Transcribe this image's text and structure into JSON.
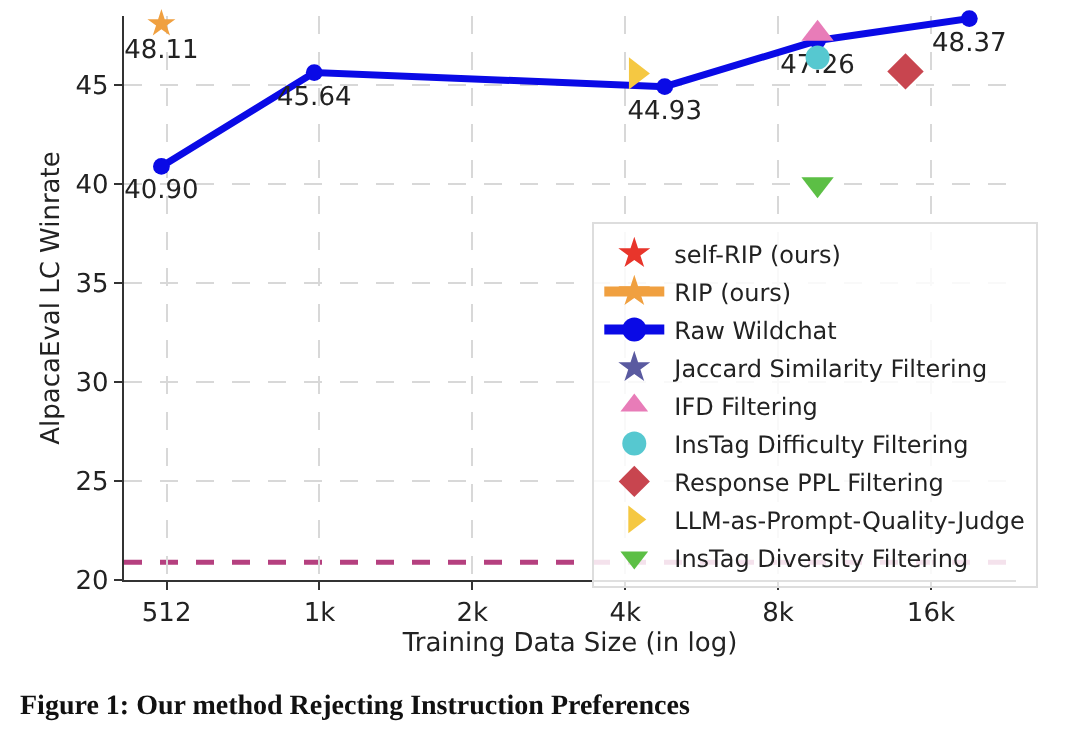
{
  "chart_data": {
    "type": "scatter",
    "xlabel": "Training Data Size (in log)",
    "ylabel": "AlpacaEval LC Winrate",
    "log": "x",
    "xlim": [
      422,
      24100
    ],
    "ylim": [
      20,
      48.5
    ],
    "xticks": [
      {
        "value": 512,
        "label": "512"
      },
      {
        "value": 1024,
        "label": "1k"
      },
      {
        "value": 2048,
        "label": "2k"
      },
      {
        "value": 4096,
        "label": "4k"
      },
      {
        "value": 8192,
        "label": "8k"
      },
      {
        "value": 16384,
        "label": "16k"
      }
    ],
    "yticks": [
      20,
      25,
      30,
      35,
      40,
      45
    ],
    "grid": true,
    "legend": "bottom right",
    "ref_lines": [
      {
        "axis": "y",
        "value": 20.9,
        "color": "#b5407f",
        "line_style": "dashed"
      }
    ],
    "annotations": [
      "Figure 1: Our method Rejecting Instruction Preferences"
    ],
    "series": [
      {
        "name": "self-RIP (ours)",
        "marker": "star",
        "color": "#e8352b"
      },
      {
        "name": "RIP (ours)",
        "type": "line",
        "marker": "star",
        "color": "#f0a040",
        "x": [
          500
        ],
        "values": [
          48.11
        ],
        "value_labels": [
          "48.11"
        ]
      },
      {
        "name": "Raw Wildchat",
        "type": "line",
        "marker": "circle",
        "color": "#0a0ae6",
        "x": [
          500,
          1000,
          4900,
          9800,
          19500
        ],
        "values": [
          40.9,
          45.64,
          44.93,
          47.26,
          48.37
        ],
        "value_labels": [
          "40.90",
          "45.64",
          "44.93",
          "47.26",
          "48.37"
        ]
      },
      {
        "name": "Jaccard Similarity Filtering",
        "marker": "star",
        "color": "#5a5aa0"
      },
      {
        "name": "IFD Filtering",
        "marker": "triangle",
        "color": "#e87cb8",
        "x": [
          9800
        ],
        "values": [
          47.6
        ]
      },
      {
        "name": "InsTag Difficulty Filtering",
        "marker": "circle",
        "color": "#56c8d0",
        "x": [
          9800
        ],
        "values": [
          46.4
        ]
      },
      {
        "name": "Response PPL Filtering",
        "marker": "diamond",
        "color": "#c8454f",
        "x": [
          14600
        ],
        "values": [
          45.7
        ]
      },
      {
        "name": "LLM-as-Prompt-Quality-Judge",
        "marker": "triangle-right",
        "color": "#f5c842",
        "x": [
          4300
        ],
        "values": [
          45.6
        ]
      },
      {
        "name": "InsTag Diversity Filtering",
        "marker": "triangle-down",
        "color": "#5cbf45",
        "x": [
          9800
        ],
        "values": [
          40.0
        ]
      }
    ]
  }
}
